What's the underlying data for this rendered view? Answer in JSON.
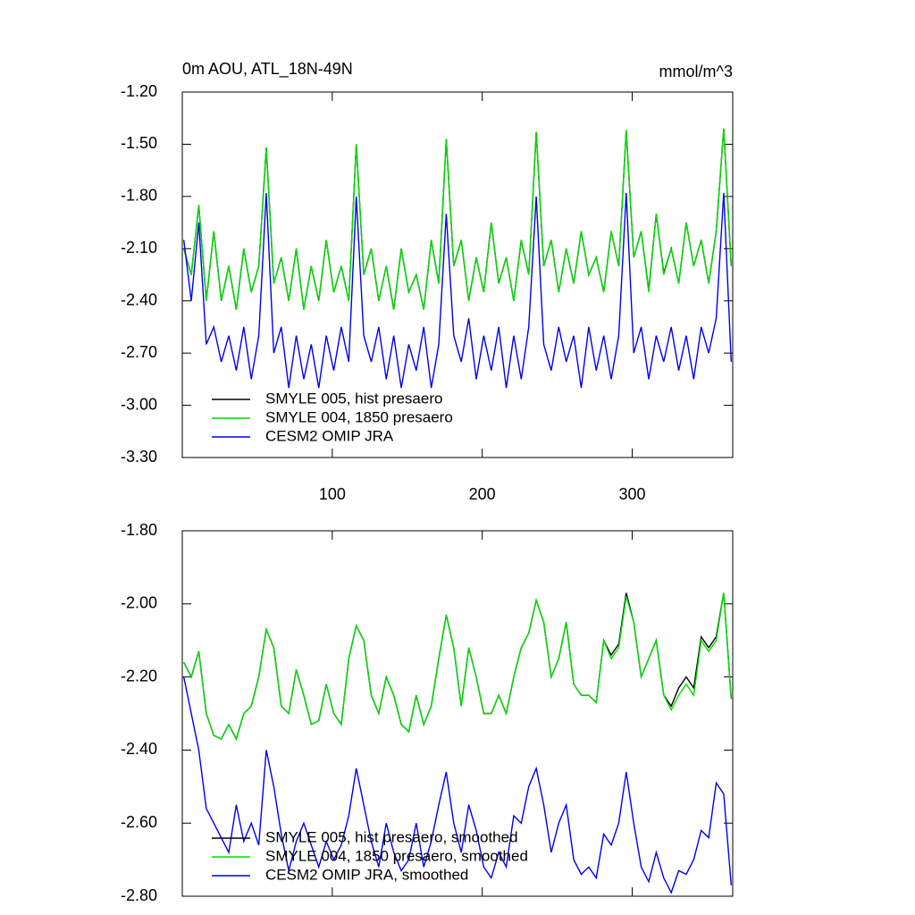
{
  "chart_data": [
    {
      "type": "line",
      "title": "0m AOU, ATL_18N-49N",
      "unit": "mmol/m^3",
      "x": [
        1,
        6,
        11,
        16,
        21,
        26,
        31,
        36,
        41,
        46,
        51,
        56,
        61,
        66,
        71,
        76,
        81,
        86,
        91,
        96,
        101,
        106,
        111,
        116,
        121,
        126,
        131,
        136,
        141,
        146,
        151,
        156,
        161,
        166,
        171,
        176,
        181,
        186,
        191,
        196,
        201,
        206,
        211,
        216,
        221,
        226,
        231,
        236,
        241,
        246,
        251,
        256,
        261,
        266,
        271,
        276,
        281,
        286,
        291,
        296,
        301,
        306,
        311,
        316,
        321,
        326,
        331,
        336,
        341,
        346,
        351,
        356,
        361,
        366
      ],
      "series": [
        {
          "name": "SMYLE 005, hist presaero",
          "color": "#000000",
          "values": [
            -2.1,
            -2.25,
            -1.85,
            -2.4,
            -2.0,
            -2.4,
            -2.2,
            -2.45,
            -2.1,
            -2.35,
            -2.2,
            -1.52,
            -2.3,
            -2.15,
            -2.4,
            -2.1,
            -2.45,
            -2.2,
            -2.4,
            -2.05,
            -2.35,
            -2.2,
            -2.4,
            -1.5,
            -2.25,
            -2.1,
            -2.4,
            -2.2,
            -2.45,
            -2.1,
            -2.35,
            -2.25,
            -2.45,
            -2.05,
            -2.3,
            -1.47,
            -2.2,
            -2.05,
            -2.4,
            -2.15,
            -2.35,
            -1.95,
            -2.3,
            -2.15,
            -2.4,
            -2.05,
            -2.25,
            -1.43,
            -2.2,
            -2.05,
            -2.35,
            -2.1,
            -2.3,
            -2.0,
            -2.25,
            -2.15,
            -2.35,
            -2.0,
            -2.2,
            -1.42,
            -2.15,
            -2.0,
            -2.34,
            -1.9,
            -2.24,
            -2.1,
            -2.3,
            -1.95,
            -2.2,
            -2.05,
            -2.3,
            -2.0,
            -1.41,
            -2.2
          ]
        },
        {
          "name": "SMYLE 004, 1850 presaero",
          "color": "#00dd00",
          "values": [
            -2.1,
            -2.25,
            -1.85,
            -2.4,
            -2.0,
            -2.4,
            -2.2,
            -2.45,
            -2.1,
            -2.35,
            -2.2,
            -1.52,
            -2.3,
            -2.15,
            -2.4,
            -2.1,
            -2.45,
            -2.2,
            -2.4,
            -2.05,
            -2.35,
            -2.2,
            -2.4,
            -1.5,
            -2.25,
            -2.1,
            -2.4,
            -2.2,
            -2.45,
            -2.1,
            -2.35,
            -2.25,
            -2.45,
            -2.05,
            -2.3,
            -1.47,
            -2.2,
            -2.05,
            -2.4,
            -2.15,
            -2.35,
            -1.95,
            -2.3,
            -2.15,
            -2.4,
            -2.05,
            -2.25,
            -1.43,
            -2.2,
            -2.05,
            -2.35,
            -2.1,
            -2.3,
            -2.0,
            -2.25,
            -2.15,
            -2.35,
            -2.0,
            -2.2,
            -1.42,
            -2.15,
            -2.0,
            -2.35,
            -1.9,
            -2.25,
            -2.1,
            -2.3,
            -1.95,
            -2.2,
            -2.05,
            -2.3,
            -2.0,
            -1.41,
            -2.2
          ]
        },
        {
          "name": "CESM2 OMIP JRA",
          "color": "#0000ee",
          "values": [
            -2.05,
            -2.4,
            -1.95,
            -2.65,
            -2.55,
            -2.75,
            -2.6,
            -2.8,
            -2.55,
            -2.85,
            -2.6,
            -1.78,
            -2.7,
            -2.55,
            -2.9,
            -2.6,
            -2.85,
            -2.65,
            -2.9,
            -2.6,
            -2.8,
            -2.55,
            -2.75,
            -1.8,
            -2.6,
            -2.75,
            -2.55,
            -2.85,
            -2.6,
            -2.9,
            -2.65,
            -2.8,
            -2.55,
            -2.9,
            -2.65,
            -1.9,
            -2.6,
            -2.75,
            -2.5,
            -2.85,
            -2.6,
            -2.8,
            -2.55,
            -2.9,
            -2.6,
            -2.85,
            -2.55,
            -1.8,
            -2.65,
            -2.8,
            -2.55,
            -2.75,
            -2.6,
            -2.9,
            -2.55,
            -2.8,
            -2.6,
            -2.85,
            -2.6,
            -1.78,
            -2.7,
            -2.55,
            -2.85,
            -2.6,
            -2.75,
            -2.55,
            -2.8,
            -2.6,
            -2.85,
            -2.55,
            -2.7,
            -2.5,
            -1.78,
            -2.75
          ]
        }
      ],
      "xlim": [
        0,
        367
      ],
      "xticks": [
        100,
        200,
        300
      ],
      "show_xtick_labels": true,
      "ylim": [
        -3.3,
        -1.2
      ],
      "yticks": [
        {
          "value": -3.3,
          "label": "-3.30"
        },
        {
          "value": -3.0,
          "label": "-3.00"
        },
        {
          "value": -2.7,
          "label": "-2.70"
        },
        {
          "value": -2.4,
          "label": "-2.40"
        },
        {
          "value": -2.1,
          "label": "-2.10"
        },
        {
          "value": -1.8,
          "label": "-1.80"
        },
        {
          "value": -1.5,
          "label": "-1.50"
        },
        {
          "value": -1.2,
          "label": "-1.20"
        }
      ],
      "legend": "lower left"
    },
    {
      "type": "line",
      "x": [
        1,
        6,
        11,
        16,
        21,
        26,
        31,
        36,
        41,
        46,
        51,
        56,
        61,
        66,
        71,
        76,
        81,
        86,
        91,
        96,
        101,
        106,
        111,
        116,
        121,
        126,
        131,
        136,
        141,
        146,
        151,
        156,
        161,
        166,
        171,
        176,
        181,
        186,
        191,
        196,
        201,
        206,
        211,
        216,
        221,
        226,
        231,
        236,
        241,
        246,
        251,
        256,
        261,
        266,
        271,
        276,
        281,
        286,
        291,
        296,
        301,
        306,
        311,
        316,
        321,
        326,
        331,
        336,
        341,
        346,
        351,
        356,
        361,
        366
      ],
      "series": [
        {
          "name": "SMYLE 005, hist presaero, smoothed",
          "color": "#000000",
          "values": [
            -2.16,
            -2.2,
            -2.13,
            -2.3,
            -2.36,
            -2.37,
            -2.33,
            -2.37,
            -2.3,
            -2.28,
            -2.2,
            -2.07,
            -2.12,
            -2.28,
            -2.3,
            -2.18,
            -2.25,
            -2.33,
            -2.32,
            -2.22,
            -2.3,
            -2.33,
            -2.15,
            -2.06,
            -2.1,
            -2.25,
            -2.3,
            -2.2,
            -2.25,
            -2.33,
            -2.35,
            -2.25,
            -2.33,
            -2.28,
            -2.15,
            -2.03,
            -2.12,
            -2.28,
            -2.12,
            -2.2,
            -2.3,
            -2.3,
            -2.25,
            -2.3,
            -2.2,
            -2.12,
            -2.08,
            -1.99,
            -2.05,
            -2.2,
            -2.15,
            -2.05,
            -2.22,
            -2.25,
            -2.25,
            -2.27,
            -2.1,
            -2.14,
            -2.11,
            -1.97,
            -2.05,
            -2.2,
            -2.15,
            -2.1,
            -2.25,
            -2.28,
            -2.23,
            -2.2,
            -2.23,
            -2.09,
            -2.12,
            -2.09,
            -1.97,
            -2.26
          ]
        },
        {
          "name": "SMYLE 004, 1850 presaero, smoothed",
          "color": "#00dd00",
          "values": [
            -2.16,
            -2.2,
            -2.13,
            -2.3,
            -2.36,
            -2.37,
            -2.33,
            -2.37,
            -2.3,
            -2.28,
            -2.2,
            -2.07,
            -2.12,
            -2.28,
            -2.3,
            -2.18,
            -2.25,
            -2.33,
            -2.32,
            -2.22,
            -2.3,
            -2.33,
            -2.15,
            -2.06,
            -2.1,
            -2.25,
            -2.3,
            -2.2,
            -2.25,
            -2.33,
            -2.35,
            -2.25,
            -2.33,
            -2.28,
            -2.15,
            -2.03,
            -2.12,
            -2.28,
            -2.12,
            -2.2,
            -2.3,
            -2.3,
            -2.25,
            -2.3,
            -2.2,
            -2.12,
            -2.08,
            -1.99,
            -2.05,
            -2.2,
            -2.15,
            -2.05,
            -2.22,
            -2.25,
            -2.25,
            -2.27,
            -2.1,
            -2.15,
            -2.12,
            -1.98,
            -2.05,
            -2.2,
            -2.15,
            -2.1,
            -2.25,
            -2.29,
            -2.25,
            -2.22,
            -2.25,
            -2.1,
            -2.13,
            -2.1,
            -1.97,
            -2.26
          ]
        },
        {
          "name": "CESM2 OMIP JRA, smoothed",
          "color": "#0000ee",
          "values": [
            -2.2,
            -2.3,
            -2.4,
            -2.56,
            -2.6,
            -2.64,
            -2.68,
            -2.55,
            -2.65,
            -2.6,
            -2.66,
            -2.4,
            -2.5,
            -2.63,
            -2.73,
            -2.65,
            -2.6,
            -2.66,
            -2.72,
            -2.65,
            -2.7,
            -2.66,
            -2.58,
            -2.45,
            -2.55,
            -2.65,
            -2.72,
            -2.6,
            -2.68,
            -2.73,
            -2.7,
            -2.6,
            -2.72,
            -2.65,
            -2.55,
            -2.46,
            -2.6,
            -2.68,
            -2.55,
            -2.62,
            -2.72,
            -2.75,
            -2.68,
            -2.72,
            -2.58,
            -2.6,
            -2.5,
            -2.45,
            -2.55,
            -2.68,
            -2.6,
            -2.55,
            -2.7,
            -2.74,
            -2.72,
            -2.75,
            -2.63,
            -2.66,
            -2.6,
            -2.46,
            -2.6,
            -2.72,
            -2.76,
            -2.68,
            -2.75,
            -2.79,
            -2.73,
            -2.74,
            -2.7,
            -2.62,
            -2.64,
            -2.49,
            -2.52,
            -2.77
          ]
        }
      ],
      "xlim": [
        0,
        367
      ],
      "xticks": [
        100,
        200,
        300
      ],
      "show_xtick_labels": false,
      "ylim": [
        -2.8,
        -1.8
      ],
      "yticks": [
        {
          "value": -2.8,
          "label": "-2.80"
        },
        {
          "value": -2.6,
          "label": "-2.60"
        },
        {
          "value": -2.4,
          "label": "-2.40"
        },
        {
          "value": -2.2,
          "label": "-2.20"
        },
        {
          "value": -2.0,
          "label": "-2.00"
        },
        {
          "value": -1.8,
          "label": "-1.80"
        }
      ],
      "legend": "lower left"
    }
  ]
}
